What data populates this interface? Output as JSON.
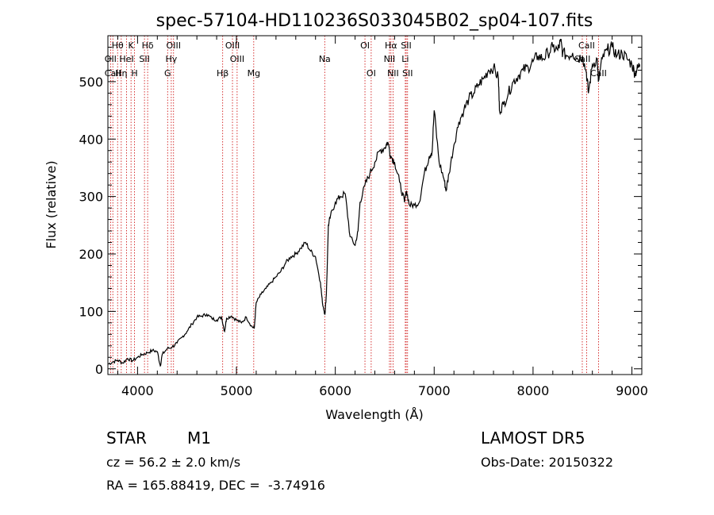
{
  "chart_data": {
    "type": "line",
    "title": "spec-57104-HD110236S033045B02_sp04-107.fits",
    "xlabel": "Wavelength (Å)",
    "ylabel": "Flux (relative)",
    "xlim": [
      3700,
      9100
    ],
    "ylim": [
      -10,
      580
    ],
    "x_ticks": [
      4000,
      5000,
      6000,
      7000,
      8000,
      9000
    ],
    "y_ticks": [
      0,
      100,
      200,
      300,
      400,
      500
    ],
    "line_color": "#000000",
    "marker_color": "#cc0000",
    "grid": false,
    "series": [
      {
        "x": [
          3700,
          3750,
          3800,
          3850,
          3900,
          3950,
          4000,
          4050,
          4100,
          4150,
          4200,
          4230,
          4250,
          4300,
          4350,
          4400,
          4450,
          4500,
          4550,
          4600,
          4650,
          4700,
          4750,
          4800,
          4850,
          4880,
          4900,
          4950,
          5000,
          5050,
          5100,
          5150,
          5180,
          5200,
          5250,
          5300,
          5350,
          5400,
          5450,
          5500,
          5550,
          5600,
          5650,
          5700,
          5750,
          5800,
          5850,
          5870,
          5895,
          5910,
          5930,
          5950,
          6000,
          6050,
          6100,
          6150,
          6200,
          6230,
          6250,
          6300,
          6350,
          6400,
          6450,
          6500,
          6530,
          6563,
          6600,
          6650,
          6700,
          6720,
          6750,
          6800,
          6850,
          6900,
          6950,
          6980,
          7000,
          7050,
          7100,
          7120,
          7150,
          7200,
          7250,
          7300,
          7350,
          7400,
          7450,
          7500,
          7550,
          7600,
          7650,
          7660,
          7700,
          7750,
          7800,
          7850,
          7900,
          7950,
          8000,
          8050,
          8100,
          8150,
          8200,
          8250,
          8280,
          8300,
          8350,
          8400,
          8450,
          8500,
          8540,
          8560,
          8600,
          8650,
          8660,
          8700,
          8750,
          8800,
          8850,
          8900,
          8950,
          9000,
          9030,
          9050,
          9080
        ],
        "y": [
          8,
          12,
          15,
          10,
          18,
          14,
          20,
          25,
          28,
          32,
          30,
          5,
          25,
          35,
          38,
          45,
          55,
          65,
          78,
          90,
          92,
          95,
          88,
          85,
          90,
          65,
          88,
          92,
          85,
          80,
          90,
          75,
          70,
          115,
          130,
          140,
          150,
          160,
          170,
          185,
          195,
          200,
          210,
          220,
          205,
          195,
          150,
          115,
          95,
          130,
          250,
          265,
          290,
          300,
          305,
          230,
          215,
          240,
          290,
          320,
          340,
          360,
          380,
          385,
          395,
          370,
          360,
          325,
          290,
          310,
          285,
          285,
          290,
          340,
          370,
          380,
          450,
          360,
          330,
          310,
          340,
          390,
          430,
          450,
          470,
          480,
          495,
          505,
          520,
          525,
          505,
          450,
          460,
          480,
          500,
          510,
          520,
          525,
          535,
          545,
          540,
          550,
          560,
          555,
          570,
          550,
          545,
          550,
          540,
          545,
          515,
          480,
          530,
          540,
          500,
          540,
          555,
          560,
          545,
          550,
          540,
          530,
          515,
          520,
          530
        ]
      }
    ],
    "line_markers": [
      {
        "label": "Hθ",
        "wavelength": 3798,
        "row": 0
      },
      {
        "label": "K",
        "wavelength": 3934,
        "row": 0
      },
      {
        "label": "Hδ",
        "wavelength": 4102,
        "row": 0
      },
      {
        "label": "OIII",
        "wavelength": 4364,
        "row": 0
      },
      {
        "label": "OIII",
        "wavelength": 4960,
        "row": 0
      },
      {
        "label": "OI",
        "wavelength": 6300,
        "row": 0
      },
      {
        "label": "Hα",
        "wavelength": 6563,
        "row": 0
      },
      {
        "label": "SII",
        "wavelength": 6717,
        "row": 0
      },
      {
        "label": "CaII",
        "wavelength": 8542,
        "row": 0
      },
      {
        "label": "OII",
        "wavelength": 3727,
        "row": 1
      },
      {
        "label": "HeI",
        "wavelength": 3889,
        "row": 1
      },
      {
        "label": "SII",
        "wavelength": 4070,
        "row": 1
      },
      {
        "label": "Hγ",
        "wavelength": 4341,
        "row": 1
      },
      {
        "label": "OIII",
        "wavelength": 5007,
        "row": 1
      },
      {
        "label": "NII",
        "wavelength": 6548,
        "row": 1
      },
      {
        "label": "Li",
        "wavelength": 6708,
        "row": 1
      },
      {
        "label": "CaII",
        "wavelength": 8498,
        "row": 1
      },
      {
        "label": "CaII",
        "wavelength": 3750,
        "row": 2
      },
      {
        "label": "Hη",
        "wavelength": 3835,
        "row": 2
      },
      {
        "label": "H",
        "wavelength": 3969,
        "row": 2
      },
      {
        "label": "G",
        "wavelength": 4304,
        "row": 2
      },
      {
        "label": "Hβ",
        "wavelength": 4861,
        "row": 2
      },
      {
        "label": "Mg",
        "wavelength": 5175,
        "row": 2
      },
      {
        "label": "Na",
        "wavelength": 5893,
        "row": 1
      },
      {
        "label": "OI",
        "wavelength": 6363,
        "row": 2
      },
      {
        "label": "NII",
        "wavelength": 6584,
        "row": 2
      },
      {
        "label": "SII",
        "wavelength": 6731,
        "row": 2
      },
      {
        "label": "CaII",
        "wavelength": 8662,
        "row": 2
      }
    ]
  },
  "info": {
    "class_label": "STAR",
    "subclass_label": "M1",
    "survey_label": "LAMOST DR5",
    "cz_text": "cz = 56.2 ± 2.0 km/s",
    "obs_date_text": "Obs-Date: 20150322",
    "coords_text": "RA = 165.88419, DEC =  -3.74916"
  }
}
